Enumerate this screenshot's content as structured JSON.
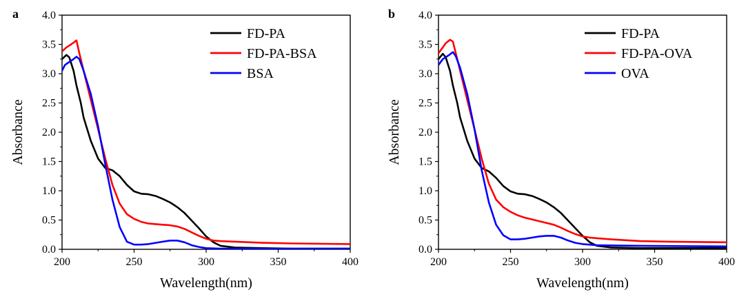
{
  "chart_data": [
    {
      "type": "line",
      "panel_label": "a",
      "xlabel": "Wavelength(nm)",
      "ylabel": "Absorbance",
      "xlim": [
        200,
        400
      ],
      "ylim": [
        0.0,
        4.0
      ],
      "xticks": [
        "200",
        "250",
        "300",
        "350",
        "400"
      ],
      "yticks": [
        "0.0",
        "0.5",
        "1.0",
        "1.5",
        "2.0",
        "2.5",
        "3.0",
        "3.5",
        "4.0"
      ],
      "legend_position": "top-right",
      "grid": false,
      "series": [
        {
          "name": "FD-PA",
          "color": "#000000",
          "x": [
            200,
            203,
            205,
            208,
            210,
            213,
            215,
            220,
            225,
            230,
            235,
            240,
            245,
            250,
            255,
            260,
            265,
            270,
            275,
            280,
            285,
            290,
            295,
            300,
            305,
            310,
            320,
            340,
            360,
            400
          ],
          "y": [
            3.25,
            3.32,
            3.28,
            3.05,
            2.8,
            2.5,
            2.25,
            1.85,
            1.55,
            1.39,
            1.35,
            1.25,
            1.1,
            0.99,
            0.95,
            0.94,
            0.91,
            0.86,
            0.8,
            0.72,
            0.62,
            0.49,
            0.36,
            0.22,
            0.12,
            0.06,
            0.03,
            0.02,
            0.01,
            0.01
          ]
        },
        {
          "name": "FD-PA-BSA",
          "color": "#ff0000",
          "x": [
            200,
            203,
            205,
            208,
            210,
            212,
            215,
            220,
            225,
            230,
            235,
            240,
            245,
            250,
            255,
            260,
            265,
            270,
            275,
            280,
            285,
            290,
            295,
            300,
            305,
            310,
            320,
            340,
            360,
            400
          ],
          "y": [
            3.38,
            3.45,
            3.48,
            3.53,
            3.57,
            3.35,
            3.05,
            2.55,
            2.05,
            1.55,
            1.1,
            0.78,
            0.6,
            0.52,
            0.47,
            0.44,
            0.43,
            0.42,
            0.41,
            0.39,
            0.35,
            0.29,
            0.23,
            0.18,
            0.15,
            0.14,
            0.13,
            0.11,
            0.1,
            0.09
          ]
        },
        {
          "name": "BSA",
          "color": "#0000ff",
          "x": [
            200,
            202,
            205,
            208,
            210,
            212,
            215,
            220,
            225,
            230,
            235,
            240,
            245,
            250,
            255,
            260,
            265,
            270,
            275,
            280,
            285,
            290,
            295,
            300,
            310,
            340,
            400
          ],
          "y": [
            3.05,
            3.15,
            3.2,
            3.25,
            3.29,
            3.25,
            3.05,
            2.65,
            2.1,
            1.45,
            0.85,
            0.38,
            0.13,
            0.08,
            0.08,
            0.09,
            0.11,
            0.13,
            0.15,
            0.15,
            0.12,
            0.07,
            0.04,
            0.02,
            0.01,
            0.01,
            0.01
          ]
        }
      ]
    },
    {
      "type": "line",
      "panel_label": "b",
      "xlabel": "Wavelength(nm)",
      "ylabel": "Absorbance",
      "xlim": [
        200,
        400
      ],
      "ylim": [
        0.0,
        4.0
      ],
      "xticks": [
        "200",
        "250",
        "300",
        "350",
        "400"
      ],
      "yticks": [
        "0.0",
        "0.5",
        "1.0",
        "1.5",
        "2.0",
        "2.5",
        "3.0",
        "3.5",
        "4.0"
      ],
      "legend_position": "top-right",
      "grid": false,
      "series": [
        {
          "name": "FD-PA",
          "color": "#000000",
          "x": [
            200,
            203,
            205,
            208,
            210,
            213,
            215,
            220,
            225,
            230,
            235,
            240,
            245,
            250,
            255,
            260,
            265,
            270,
            275,
            280,
            285,
            290,
            295,
            300,
            305,
            310,
            320,
            340,
            360,
            400
          ],
          "y": [
            3.25,
            3.34,
            3.28,
            3.05,
            2.8,
            2.5,
            2.25,
            1.85,
            1.55,
            1.39,
            1.33,
            1.22,
            1.08,
            0.99,
            0.95,
            0.94,
            0.91,
            0.86,
            0.8,
            0.72,
            0.62,
            0.49,
            0.36,
            0.23,
            0.12,
            0.06,
            0.03,
            0.02,
            0.02,
            0.02
          ]
        },
        {
          "name": "FD-PA-OVA",
          "color": "#ff0000",
          "x": [
            200,
            203,
            205,
            208,
            210,
            212,
            215,
            220,
            225,
            230,
            235,
            240,
            245,
            250,
            255,
            260,
            265,
            270,
            275,
            280,
            285,
            290,
            295,
            300,
            305,
            310,
            320,
            340,
            360,
            400
          ],
          "y": [
            3.35,
            3.45,
            3.52,
            3.58,
            3.55,
            3.35,
            3.05,
            2.55,
            2.05,
            1.55,
            1.12,
            0.85,
            0.72,
            0.64,
            0.58,
            0.54,
            0.51,
            0.48,
            0.45,
            0.42,
            0.37,
            0.31,
            0.26,
            0.22,
            0.2,
            0.19,
            0.17,
            0.14,
            0.13,
            0.12
          ]
        },
        {
          "name": "OVA",
          "color": "#0000ff",
          "x": [
            200,
            203,
            205,
            208,
            210,
            212,
            215,
            220,
            225,
            230,
            235,
            240,
            245,
            250,
            255,
            260,
            265,
            270,
            275,
            280,
            285,
            290,
            295,
            300,
            310,
            340,
            400
          ],
          "y": [
            3.15,
            3.25,
            3.28,
            3.33,
            3.37,
            3.3,
            3.1,
            2.65,
            2.05,
            1.35,
            0.8,
            0.42,
            0.24,
            0.17,
            0.17,
            0.18,
            0.2,
            0.22,
            0.23,
            0.23,
            0.2,
            0.15,
            0.11,
            0.09,
            0.07,
            0.06,
            0.05
          ]
        }
      ]
    }
  ]
}
